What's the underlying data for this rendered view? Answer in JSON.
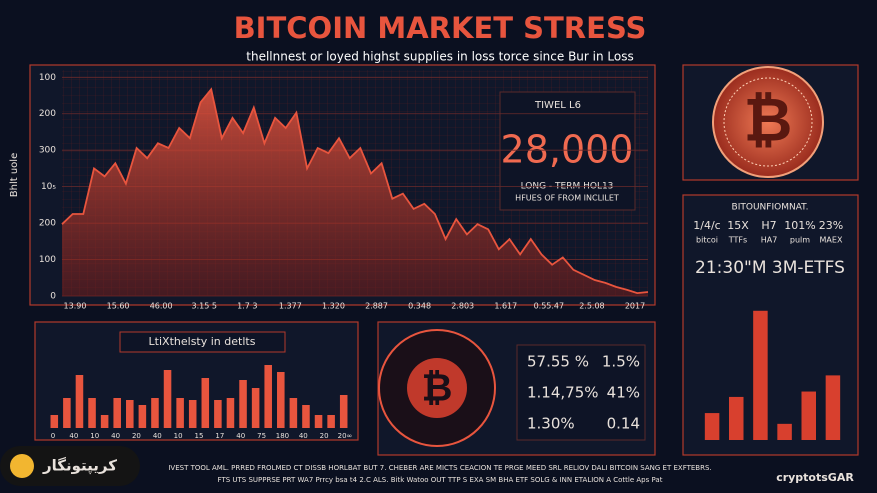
{
  "title": "BITCOIN MARKET STRESS",
  "subtitle": "thellnnest or loyed highst supplies in loss torce since Bur in Loss",
  "coin_symbol": "₿",
  "stats_box": {
    "label": "TIWEL L6",
    "value": "28,000",
    "caption1": "LONG - TERM HOL13",
    "caption2": "HFUES OF FROM INCLILET"
  },
  "info_panel": {
    "title": "BITOUNFIOMNAT.",
    "cells": [
      "1/4/c",
      "15X",
      "H7",
      "101%",
      "23%"
    ],
    "subcells": [
      "bitcoi",
      "TTFs",
      "HA7",
      "pulm",
      "MAEX"
    ],
    "clock": "21:30\"M 3M-ETFS"
  },
  "mid_stats": [
    [
      "57.55 %",
      "1.5%"
    ],
    [
      "1.14,75%",
      "41%"
    ],
    [
      "1.30%",
      "0.14"
    ]
  ],
  "footer": [
    "IVEST TOOL AML. PRRED FROLMED CT DISSB HORLBAT BUT 7. CHEBER ARE MICTS CEACION TE PRGE MEED SRL RELIOV DALI BITCOIN SANG ET EXFTEBRS.",
    "FTS UTS SUPPRSE PRT WA7 Prrcy bsa t4 2.C ALS. Bitk Watoo OUT TTP S EXA SM BHA ETF SOLG & INN ETALION A Cottle Aps Pat"
  ],
  "brand": "cryptotsGAR",
  "logo": "کریپتونگار",
  "chart_data": [
    {
      "type": "area",
      "ylabel": "Bhlt uole",
      "color": "#e8553e",
      "values": [
        197,
        225,
        225,
        350,
        328,
        364,
        308,
        406,
        378,
        419,
        406,
        461,
        433,
        531,
        567,
        433,
        489,
        447,
        517,
        419,
        489,
        461,
        503,
        350,
        406,
        392,
        433,
        378,
        406,
        336,
        364,
        267,
        281,
        239,
        253,
        225,
        156,
        211,
        169,
        197,
        183,
        128,
        156,
        114,
        156,
        114,
        86,
        106,
        72,
        58,
        44,
        36,
        25,
        17,
        8,
        11
      ],
      "x_labels": [
        "13.90",
        "15.60",
        "46.00",
        "3.15 5",
        "1.7 3",
        "1.377",
        "1.320",
        "2.887",
        "0.348",
        "2.803",
        "1.617",
        "0.55.47",
        "2.5.08",
        "2017"
      ],
      "ylim": [
        0,
        620
      ],
      "yticks": [
        0,
        100,
        200,
        {
          "value": 300,
          "label": "10₅"
        },
        {
          "value": 400,
          "label": "300"
        },
        {
          "value": 500,
          "label": "200"
        },
        {
          "value": 600,
          "label": "100"
        }
      ],
      "grid": true
    },
    {
      "type": "bar",
      "title": "LtiXthelsty in detlts",
      "color": "#e8553e",
      "values": [
        13,
        30,
        53,
        30,
        13,
        30,
        28,
        23,
        30,
        58,
        30,
        28,
        50,
        28,
        30,
        48,
        40,
        63,
        56,
        30,
        23,
        13,
        13,
        33
      ],
      "x_labels": [
        "0",
        "40",
        "10",
        "40",
        "20",
        "40",
        "10",
        "15",
        "17",
        "40",
        "75",
        "180",
        "40",
        "20",
        "20∞"
      ],
      "ylim": [
        0,
        70
      ]
    },
    {
      "type": "bar",
      "color": "#d8402e",
      "values": [
        25,
        40,
        120,
        15,
        45,
        60
      ],
      "ylim": [
        0,
        130
      ]
    }
  ]
}
